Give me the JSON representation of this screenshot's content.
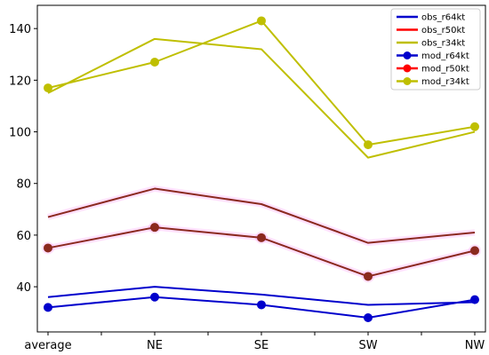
{
  "chart_data": {
    "type": "line",
    "categories": [
      "average",
      "NE",
      "SE",
      "SW",
      "NW"
    ],
    "yticks": [
      40,
      60,
      80,
      100,
      120,
      140
    ],
    "ylim": [
      22.5,
      149
    ],
    "grid": false,
    "legend_position": "top-right",
    "series": [
      {
        "name": "obs_r64kt",
        "color": "#0000cc",
        "marker": false,
        "values": [
          36,
          40,
          37,
          33,
          34
        ]
      },
      {
        "name": "obs_r50kt",
        "color": "#ff0000",
        "marker": false,
        "values": [
          67,
          78,
          72,
          57,
          61
        ]
      },
      {
        "name": "obs_r34kt",
        "color": "#bfbf00",
        "marker": false,
        "values": [
          115,
          136,
          132,
          90,
          100
        ]
      },
      {
        "name": "mod_r64kt",
        "color": "#0000cc",
        "marker": true,
        "values": [
          32,
          36,
          33,
          28,
          35
        ]
      },
      {
        "name": "mod_r50kt",
        "color": "#ff0000",
        "marker": true,
        "values": [
          55,
          63,
          59,
          44,
          54
        ]
      },
      {
        "name": "mod_r34kt",
        "color": "#bfbf00",
        "marker": true,
        "values": [
          117,
          127,
          143,
          95,
          102
        ]
      }
    ],
    "rendered_colors": {
      "obs_r64kt": "#0000cc",
      "obs_r50kt": "#8b2a1f",
      "obs_r34kt": "#bfbf00",
      "mod_r64kt": "#0000cc",
      "mod_r50kt": "#8b2a1f",
      "mod_r34kt": "#bfbf00"
    },
    "highlight_color": "#ff88ff"
  }
}
